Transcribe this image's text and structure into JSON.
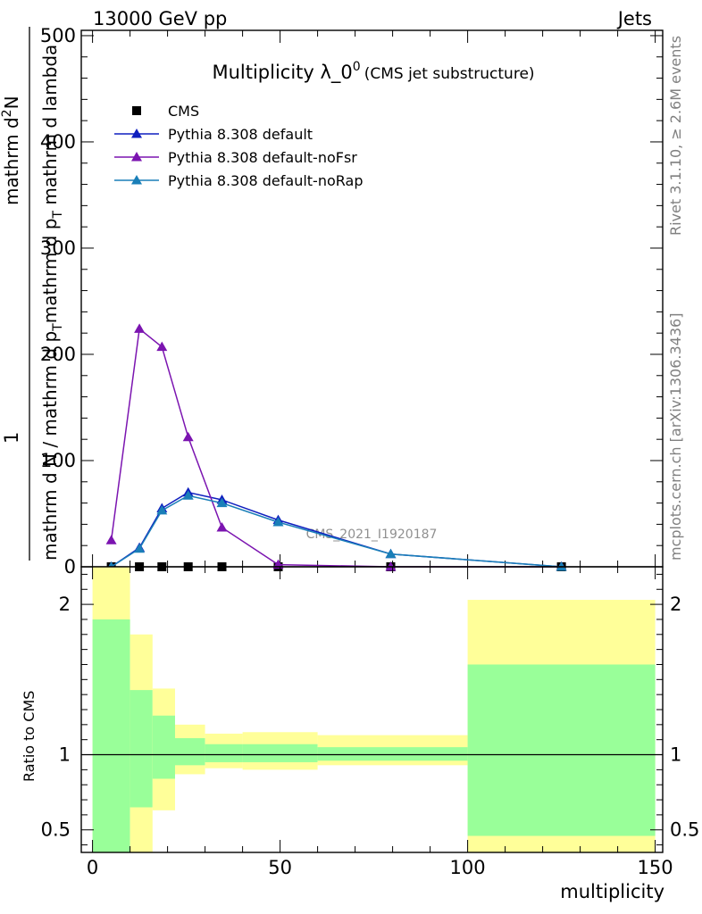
{
  "header": {
    "left": "13000 GeV pp",
    "right": "Jets"
  },
  "side_labels": {
    "rivet": "Rivet 3.1.10, ≥ 2.6M events",
    "mcplots": "mcplots.cern.ch [arXiv:1306.3436]"
  },
  "colors": {
    "cms": "#000000",
    "default": "#0f1fbf",
    "noFsr": "#7b14b0",
    "noRap": "#1a7fb8",
    "band_inner": "#99ff99",
    "band_outer": "#ffff99"
  },
  "chart_data": [
    {
      "type": "line",
      "title_main": "Multiplicity λ_0",
      "title_sup": "0",
      "title_sub": "(CMS jet substructure)",
      "watermark": "CMS_2021_I1920187",
      "ylabel_parts": [
        "1",
        "mathrm d N / mathrm d p",
        "T",
        "mathrm d p",
        "T",
        " mathrm d lambda",
        "mathrm d",
        "2",
        "N"
      ],
      "xlim": [
        -3,
        152
      ],
      "ylim": [
        0,
        505
      ],
      "yticks": [
        0,
        100,
        200,
        300,
        400,
        500
      ],
      "legend_position": "top-left",
      "series": [
        {
          "name": "CMS",
          "marker": "square",
          "x": [
            5,
            12.5,
            18.5,
            25.5,
            34.5,
            49.5,
            79.5,
            125
          ],
          "y": [
            0,
            0,
            0,
            0,
            0,
            0,
            0,
            0
          ]
        },
        {
          "name": "Pythia 8.308 default",
          "marker": "triangle",
          "x": [
            5,
            12.5,
            18.5,
            25.5,
            34.5,
            49.5,
            79.5,
            125
          ],
          "y": [
            0,
            18,
            55,
            70,
            63,
            44,
            12,
            0
          ]
        },
        {
          "name": "Pythia 8.308 default-noFsr",
          "marker": "triangle",
          "x": [
            5,
            12.5,
            18.5,
            25.5,
            34.5,
            49.5,
            79.5,
            125
          ],
          "y": [
            25,
            224,
            207,
            122,
            37,
            2,
            0,
            0
          ]
        },
        {
          "name": "Pythia 8.308 default-noRap",
          "marker": "triangle",
          "x": [
            5,
            12.5,
            18.5,
            25.5,
            34.5,
            49.5,
            79.5,
            125
          ],
          "y": [
            0,
            17,
            53,
            67,
            60,
            42,
            12,
            0
          ]
        }
      ]
    },
    {
      "type": "area",
      "ylabel": "Ratio to CMS",
      "xlabel": "multiplicity",
      "xlim": [
        -3,
        152
      ],
      "ylim": [
        0.35,
        2.25
      ],
      "xticks": [
        0,
        50,
        100,
        150
      ],
      "yticks": [
        0.5,
        1,
        2
      ],
      "reference_line": 1,
      "bins": [
        {
          "x0": 0,
          "x1": 10,
          "inner": [
            0.35,
            1.9
          ],
          "outer": [
            0.35,
            2.25
          ]
        },
        {
          "x0": 10,
          "x1": 16,
          "inner": [
            0.65,
            1.43
          ],
          "outer": [
            0.35,
            1.8
          ]
        },
        {
          "x0": 16,
          "x1": 22,
          "inner": [
            0.84,
            1.26
          ],
          "outer": [
            0.63,
            1.44
          ]
        },
        {
          "x0": 22,
          "x1": 30,
          "inner": [
            0.93,
            1.11
          ],
          "outer": [
            0.87,
            1.2
          ]
        },
        {
          "x0": 30,
          "x1": 40,
          "inner": [
            0.95,
            1.07
          ],
          "outer": [
            0.91,
            1.14
          ]
        },
        {
          "x0": 40,
          "x1": 60,
          "inner": [
            0.95,
            1.07
          ],
          "outer": [
            0.9,
            1.15
          ]
        },
        {
          "x0": 60,
          "x1": 100,
          "inner": [
            0.96,
            1.05
          ],
          "outer": [
            0.93,
            1.13
          ]
        },
        {
          "x0": 100,
          "x1": 150,
          "inner": [
            0.46,
            1.6
          ],
          "outer": [
            0.35,
            2.03
          ]
        }
      ]
    }
  ]
}
